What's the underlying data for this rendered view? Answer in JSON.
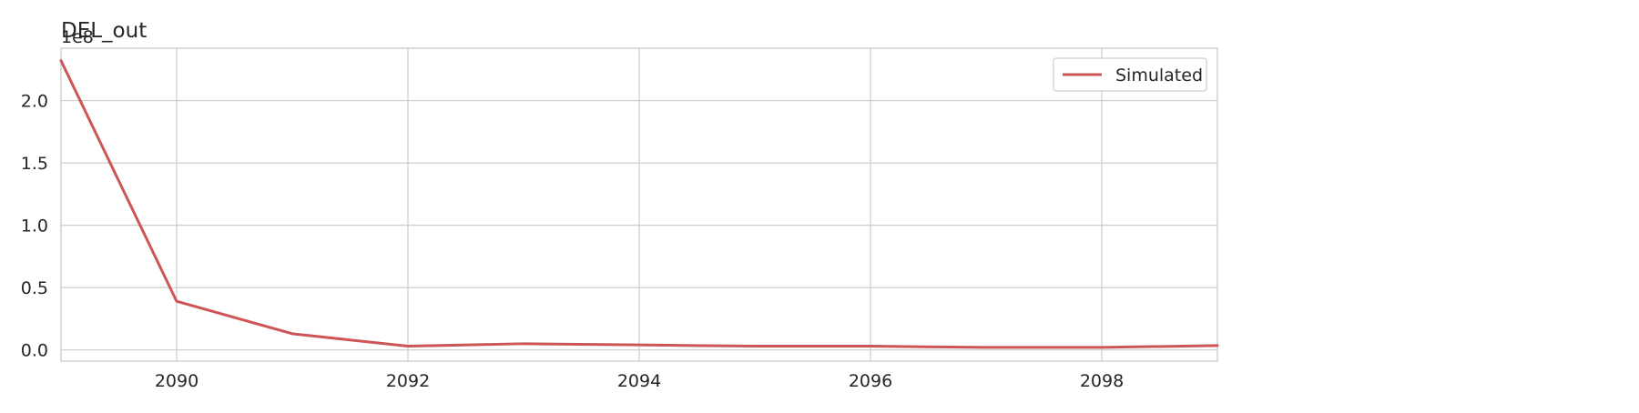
{
  "chart_data": {
    "type": "line",
    "title": "DEL_out",
    "xlabel": "",
    "ylabel": "",
    "y_offset_label": "1e8",
    "y_scale_factor": 100000000,
    "xlim": [
      2089,
      2099
    ],
    "ylim": [
      -0.09,
      2.42
    ],
    "x_ticks": [
      2090,
      2092,
      2094,
      2096,
      2098
    ],
    "x_tick_labels": [
      "2090",
      "2092",
      "2094",
      "2096",
      "2098"
    ],
    "y_ticks": [
      0.0,
      0.5,
      1.0,
      1.5,
      2.0
    ],
    "y_tick_labels": [
      "0.0",
      "0.5",
      "1.0",
      "1.5",
      "2.0"
    ],
    "grid": true,
    "legend_position": "top-right",
    "series": [
      {
        "name": "Simulated",
        "color": "#cd5555",
        "x": [
          2089,
          2090,
          2091,
          2092,
          2093,
          2094,
          2095,
          2096,
          2097,
          2098,
          2099
        ],
        "values": [
          2.32,
          0.39,
          0.13,
          0.03,
          0.05,
          0.04,
          0.03,
          0.03,
          0.02,
          0.02,
          0.035
        ]
      }
    ]
  }
}
